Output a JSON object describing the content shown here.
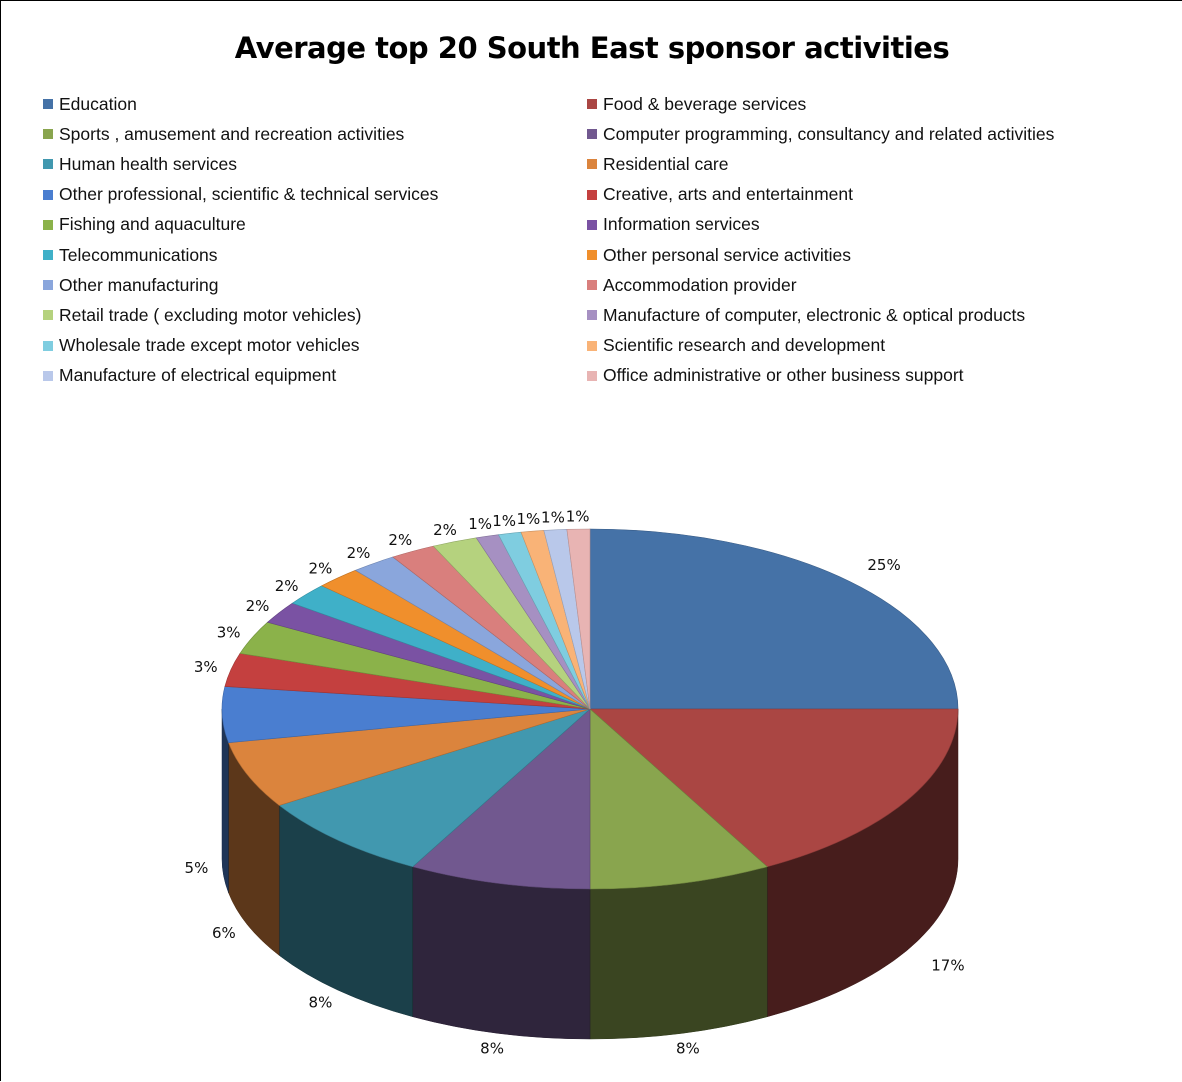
{
  "chart_data": {
    "type": "pie",
    "title": "Average top 20 South East sponsor activities",
    "legend_position": "top",
    "three_d": true,
    "slices": [
      {
        "label": "Education",
        "value": 25,
        "display": "25%",
        "color": "#4572a7"
      },
      {
        "label": "Food & beverage services",
        "value": 17,
        "display": "17%",
        "color": "#aa4643"
      },
      {
        "label": "Sports , amusement and recreation activities",
        "value": 8,
        "display": "8%",
        "color": "#89a54e"
      },
      {
        "label": "Computer programming, consultancy and related activities",
        "value": 8,
        "display": "8%",
        "color": "#71588f"
      },
      {
        "label": "Human health services",
        "value": 8,
        "display": "8%",
        "color": "#4198af"
      },
      {
        "label": "Residential care",
        "value": 6,
        "display": "6%",
        "color": "#db843d"
      },
      {
        "label": "Other professional, scientific & technical services",
        "value": 5,
        "display": "5%",
        "color": "#4a7ed0"
      },
      {
        "label": "Creative, arts and entertainment",
        "value": 3,
        "display": "3%",
        "color": "#c4403f"
      },
      {
        "label": "Fishing and aquaculture",
        "value": 3,
        "display": "3%",
        "color": "#8bb24a"
      },
      {
        "label": "Information services",
        "value": 2,
        "display": "2%",
        "color": "#7a52a3"
      },
      {
        "label": "Telecommunications",
        "value": 2,
        "display": "2%",
        "color": "#3fb0c8"
      },
      {
        "label": "Other personal service activities",
        "value": 2,
        "display": "2%",
        "color": "#f08f2c"
      },
      {
        "label": "Other manufacturing",
        "value": 2,
        "display": "2%",
        "color": "#8aa6dc"
      },
      {
        "label": "Accommodation provider",
        "value": 2,
        "display": "2%",
        "color": "#d97f7d"
      },
      {
        "label": "Retail trade ( excluding motor vehicles)",
        "value": 2,
        "display": "2%",
        "color": "#b5d27e"
      },
      {
        "label": "Manufacture of computer, electronic & optical products",
        "value": 1,
        "display": "1%",
        "color": "#a690c2"
      },
      {
        "label": "Wholesale trade except motor vehicles",
        "value": 1,
        "display": "1%",
        "color": "#7fcde0"
      },
      {
        "label": "Scientific research and development",
        "value": 1,
        "display": "1%",
        "color": "#f9b377"
      },
      {
        "label": "Manufacture of electrical equipment",
        "value": 1,
        "display": "1%",
        "color": "#b9c8ea"
      },
      {
        "label": "Office administrative or other business support",
        "value": 1,
        "display": "1%",
        "color": "#e8b4b3"
      }
    ]
  }
}
